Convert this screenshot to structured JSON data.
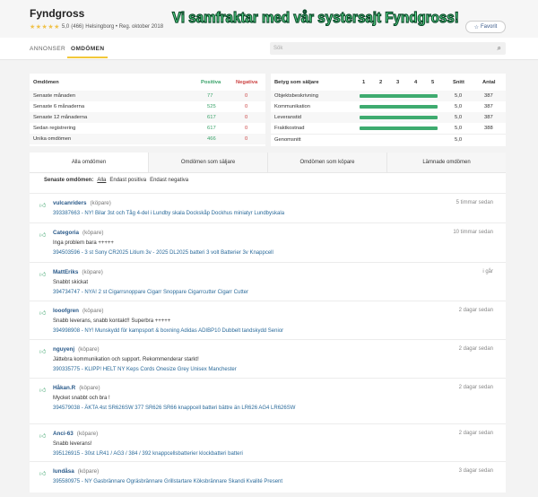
{
  "header": {
    "title": "Fyndgross",
    "rating": "5,0",
    "rating_count": "(466)",
    "location_reg": "Helsingborg • Reg. oktober 2018",
    "banner": "Vi samfraktar med vår systersajt Fyndgross!",
    "favorite_label": "Favorit",
    "star_icon": "star-icon"
  },
  "nav": {
    "tabs": [
      "ANNONSER",
      "OMDÖMEN"
    ],
    "active": "OMDÖMEN",
    "search_placeholder": "Sök"
  },
  "stats": {
    "headers": [
      "Omdömen",
      "Positiva",
      "Negativa"
    ],
    "rows": [
      {
        "label": "Senaste månaden",
        "pos": "77",
        "neg": "0"
      },
      {
        "label": "Senaste 6 månaderna",
        "pos": "525",
        "neg": "0"
      },
      {
        "label": "Senaste 12 månaderna",
        "pos": "617",
        "neg": "0"
      },
      {
        "label": "Sedan registrering",
        "pos": "617",
        "neg": "0"
      },
      {
        "label": "Unika omdömen",
        "pos": "466",
        "neg": "0"
      }
    ]
  },
  "seller_ratings": {
    "headers": [
      "Betyg som säljare",
      "1",
      "2",
      "3",
      "4",
      "5",
      "Snitt",
      "Antal"
    ],
    "rows": [
      {
        "label": "Objektsbeskrivning",
        "score": 5.0,
        "avg": "5,0",
        "count": "387"
      },
      {
        "label": "Kommunikation",
        "score": 5.0,
        "avg": "5,0",
        "count": "387"
      },
      {
        "label": "Leveranstid",
        "score": 5.0,
        "avg": "5,0",
        "count": "387"
      },
      {
        "label": "Fraktkostnad",
        "score": 5.0,
        "avg": "5,0",
        "count": "388"
      }
    ],
    "total": {
      "label": "Genomsnitt",
      "avg": "5,0"
    },
    "bar_color": "#3eab6f"
  },
  "review_tabs": [
    "Alla omdömen",
    "Omdömen som säljare",
    "Omdömen som köpare",
    "Lämnade omdömen"
  ],
  "filter": {
    "label": "Senaste omdömen:",
    "options": [
      "Alla",
      "Endast positiva",
      "Endast negativa"
    ],
    "active": "Alla"
  },
  "reviews": [
    {
      "user": "vulcanriders",
      "role": "(köpare)",
      "time": "5 timmar sedan",
      "text": "",
      "item": "393387663 - NY! Bilar 3st och Tåg 4-del i Lundby skala Dockskåp Dockhus miniatyr Lundbyskala"
    },
    {
      "user": "Categoria",
      "role": "(köpare)",
      "time": "10 timmar sedan",
      "text": "Inga problem bara +++++",
      "item": "394503596 - 3 st Sony CR2025 Litium 3v - 2025 DL2025 batteri 3 volt Batterier 3v Knappcell"
    },
    {
      "user": "MattEriks",
      "role": "(köpare)",
      "time": "i går",
      "text": "Snabbt skickat",
      "item": "394734747 - NYA! 2 st Cigarrsnoppare Cigarr Snoppare Cigarrcutter Cigarr Cutter"
    },
    {
      "user": "looofgren",
      "role": "(köpare)",
      "time": "2 dagar sedan",
      "text": "Snabb leverans, snabb kontakt!! Superbra +++++",
      "item": "394998908 - NY! Munskydd för kampsport & boxning Adidas ADIBP10 Dubbelt tandskydd Senior"
    },
    {
      "user": "nguyenj",
      "role": "(köpare)",
      "time": "2 dagar sedan",
      "text": "Jättebra kommunikation och support. Rekommenderar starkt!",
      "item": "390335775 - KLIPP! HELT NY Keps Cords Onesize Grey Unisex Manchester"
    },
    {
      "user": "Håkan.R",
      "role": "(köpare)",
      "time": "2 dagar sedan",
      "text": "Mycket snabbt och bra !",
      "item": "394579038 - ÄKTA 4st SR626SW 377 SR626 SR66 knappcell batteri bättre än LR626 AG4 LR626SW"
    },
    {
      "user": "Anci-63",
      "role": "(köpare)",
      "time": "2 dagar sedan",
      "text": "Snabb leverans!",
      "item": "395126915 - 30st LR41 / AG3 / 384 / 392 knappcellsbatterier klockbatteri batteri"
    },
    {
      "user": "lundåsa",
      "role": "(köpare)",
      "time": "3 dagar sedan",
      "text": "",
      "item": "395580975 - NY Gasbrännare Ogräsbrännare Grillstartare Köksbrännare Skandi Kvalité Present"
    }
  ]
}
